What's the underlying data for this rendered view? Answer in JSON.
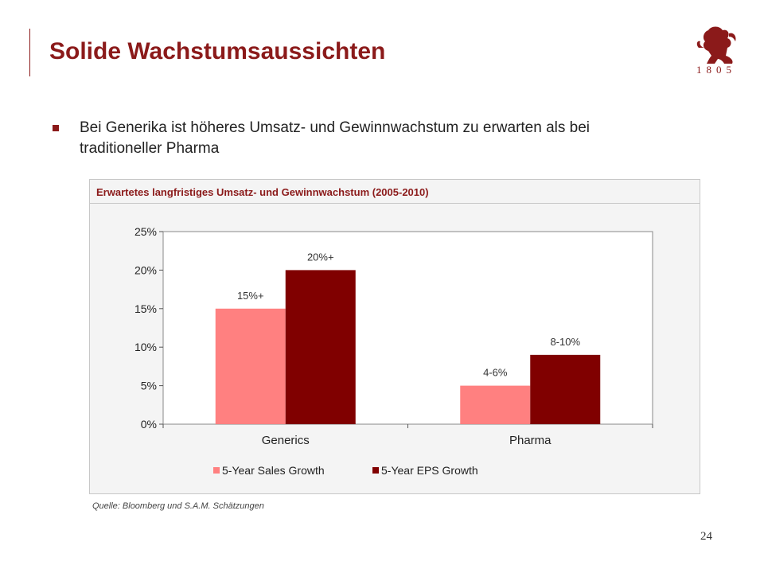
{
  "slide": {
    "title": "Solide Wachstumsaussichten",
    "logo_year": "1805",
    "bullet": "Bei Generika ist höheres Umsatz- und Gewinnwachstum zu erwarten als bei traditioneller Pharma",
    "source": "Quelle: Bloomberg und S.A.M. Schätzungen",
    "page_number": "24"
  },
  "colors": {
    "accent": "#8b1a1a",
    "sales": "#ff8080",
    "eps": "#800000"
  },
  "chart_data": {
    "type": "bar",
    "title": "Erwartetes langfristiges Umsatz- und Gewinnwachstum (2005-2010)",
    "categories": [
      "Generics",
      "Pharma"
    ],
    "series": [
      {
        "name": "5-Year Sales Growth",
        "values": [
          15,
          5
        ],
        "labels": [
          "15%+",
          "4-6%"
        ]
      },
      {
        "name": "5-Year EPS Growth",
        "values": [
          20,
          9
        ],
        "labels": [
          "20%+",
          "8-10%"
        ]
      }
    ],
    "ylim": [
      0,
      25
    ],
    "yticks": [
      "0%",
      "5%",
      "10%",
      "15%",
      "20%",
      "25%"
    ],
    "ytick_values": [
      0,
      5,
      10,
      15,
      20,
      25
    ],
    "grid": false,
    "legend": "bottom"
  }
}
